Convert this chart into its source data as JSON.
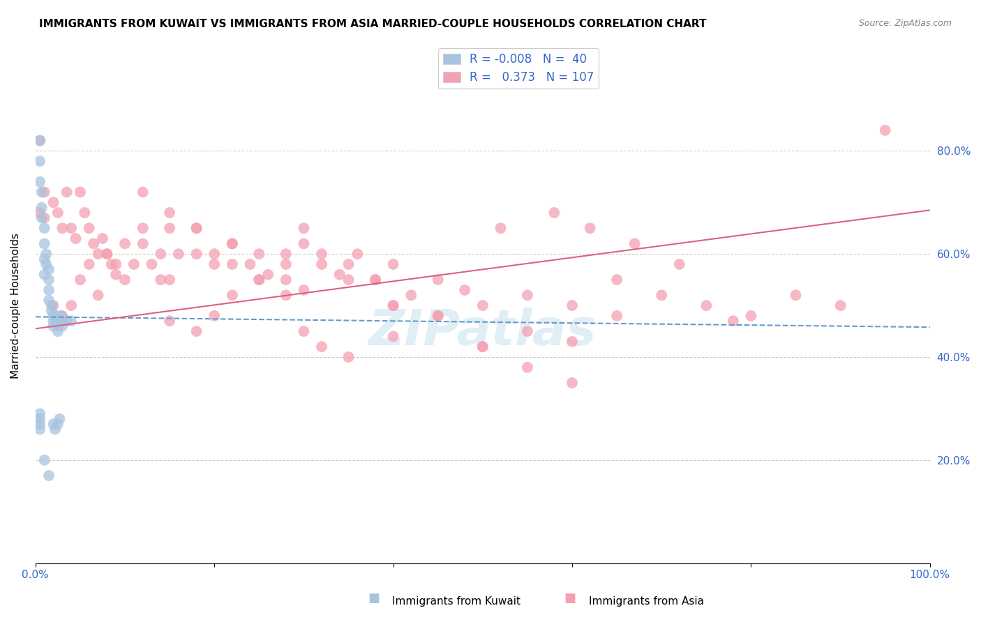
{
  "title": "IMMIGRANTS FROM KUWAIT VS IMMIGRANTS FROM ASIA MARRIED-COUPLE HOUSEHOLDS CORRELATION CHART",
  "source": "Source: ZipAtlas.com",
  "ylabel": "Married-couple Households",
  "xlim": [
    0.0,
    1.0
  ],
  "ylim": [
    0.0,
    1.0
  ],
  "yticks": [
    0.0,
    0.2,
    0.4,
    0.6,
    0.8
  ],
  "right_ytick_labels": [
    "",
    "20.0%",
    "40.0%",
    "60.0%",
    "80.0%"
  ],
  "legend_r_blue": "-0.008",
  "legend_n_blue": "40",
  "legend_r_pink": "0.373",
  "legend_n_pink": "107",
  "blue_color": "#a8c4e0",
  "pink_color": "#f4a0b0",
  "blue_line_color": "#6699cc",
  "pink_line_color": "#e06080",
  "blue_points_x": [
    0.005,
    0.005,
    0.005,
    0.007,
    0.007,
    0.007,
    0.01,
    0.01,
    0.01,
    0.01,
    0.012,
    0.012,
    0.015,
    0.015,
    0.015,
    0.015,
    0.018,
    0.018,
    0.02,
    0.02,
    0.02,
    0.022,
    0.025,
    0.025,
    0.025,
    0.028,
    0.03,
    0.03,
    0.035,
    0.04,
    0.02,
    0.022,
    0.025,
    0.027,
    0.01,
    0.015,
    0.005,
    0.005,
    0.005,
    0.005
  ],
  "blue_points_y": [
    0.82,
    0.78,
    0.74,
    0.72,
    0.69,
    0.67,
    0.65,
    0.62,
    0.59,
    0.56,
    0.6,
    0.58,
    0.57,
    0.55,
    0.53,
    0.51,
    0.5,
    0.49,
    0.48,
    0.47,
    0.46,
    0.48,
    0.47,
    0.46,
    0.45,
    0.48,
    0.47,
    0.46,
    0.47,
    0.47,
    0.27,
    0.26,
    0.27,
    0.28,
    0.2,
    0.17,
    0.29,
    0.28,
    0.27,
    0.26
  ],
  "pink_points_x": [
    0.005,
    0.01,
    0.02,
    0.025,
    0.03,
    0.035,
    0.04,
    0.045,
    0.05,
    0.055,
    0.06,
    0.065,
    0.07,
    0.075,
    0.08,
    0.085,
    0.09,
    0.1,
    0.11,
    0.12,
    0.13,
    0.14,
    0.15,
    0.16,
    0.18,
    0.2,
    0.22,
    0.24,
    0.26,
    0.28,
    0.3,
    0.32,
    0.34,
    0.36,
    0.38,
    0.4,
    0.42,
    0.45,
    0.48,
    0.5,
    0.55,
    0.6,
    0.65,
    0.7,
    0.75,
    0.8,
    0.85,
    0.9,
    0.95,
    0.005,
    0.01,
    0.02,
    0.03,
    0.04,
    0.05,
    0.06,
    0.07,
    0.08,
    0.09,
    0.1,
    0.12,
    0.14,
    0.15,
    0.18,
    0.2,
    0.22,
    0.25,
    0.28,
    0.3,
    0.35,
    0.4,
    0.45,
    0.5,
    0.12,
    0.15,
    0.18,
    0.22,
    0.25,
    0.28,
    0.3,
    0.32,
    0.35,
    0.38,
    0.4,
    0.15,
    0.18,
    0.2,
    0.22,
    0.25,
    0.28,
    0.3,
    0.32,
    0.35,
    0.4,
    0.45,
    0.5,
    0.55,
    0.6,
    0.65,
    0.52,
    0.58,
    0.62,
    0.67,
    0.72,
    0.78,
    0.55,
    0.6
  ],
  "pink_points_y": [
    0.82,
    0.72,
    0.7,
    0.68,
    0.65,
    0.72,
    0.65,
    0.63,
    0.72,
    0.68,
    0.65,
    0.62,
    0.6,
    0.63,
    0.6,
    0.58,
    0.56,
    0.62,
    0.58,
    0.65,
    0.58,
    0.55,
    0.65,
    0.6,
    0.6,
    0.58,
    0.62,
    0.58,
    0.56,
    0.6,
    0.62,
    0.58,
    0.56,
    0.6,
    0.55,
    0.58,
    0.52,
    0.55,
    0.53,
    0.5,
    0.52,
    0.5,
    0.48,
    0.52,
    0.5,
    0.48,
    0.52,
    0.5,
    0.84,
    0.68,
    0.67,
    0.5,
    0.48,
    0.5,
    0.55,
    0.58,
    0.52,
    0.6,
    0.58,
    0.55,
    0.62,
    0.6,
    0.55,
    0.65,
    0.6,
    0.58,
    0.55,
    0.52,
    0.53,
    0.55,
    0.5,
    0.48,
    0.42,
    0.72,
    0.68,
    0.65,
    0.62,
    0.6,
    0.55,
    0.65,
    0.6,
    0.58,
    0.55,
    0.5,
    0.47,
    0.45,
    0.48,
    0.52,
    0.55,
    0.58,
    0.45,
    0.42,
    0.4,
    0.44,
    0.48,
    0.42,
    0.38,
    0.35,
    0.55,
    0.65,
    0.68,
    0.65,
    0.62,
    0.58,
    0.47,
    0.45,
    0.43
  ],
  "blue_trend_start_x": 0.0,
  "blue_trend_end_x": 1.0,
  "blue_trend_start_y": 0.478,
  "blue_trend_end_y": 0.458,
  "pink_trend_start_x": 0.0,
  "pink_trend_end_x": 1.0,
  "pink_trend_start_y": 0.455,
  "pink_trend_end_y": 0.685,
  "grid_color": "#cccccc",
  "background_color": "#ffffff",
  "title_fontsize": 11,
  "axis_label_fontsize": 11,
  "tick_fontsize": 11,
  "legend_fontsize": 12
}
